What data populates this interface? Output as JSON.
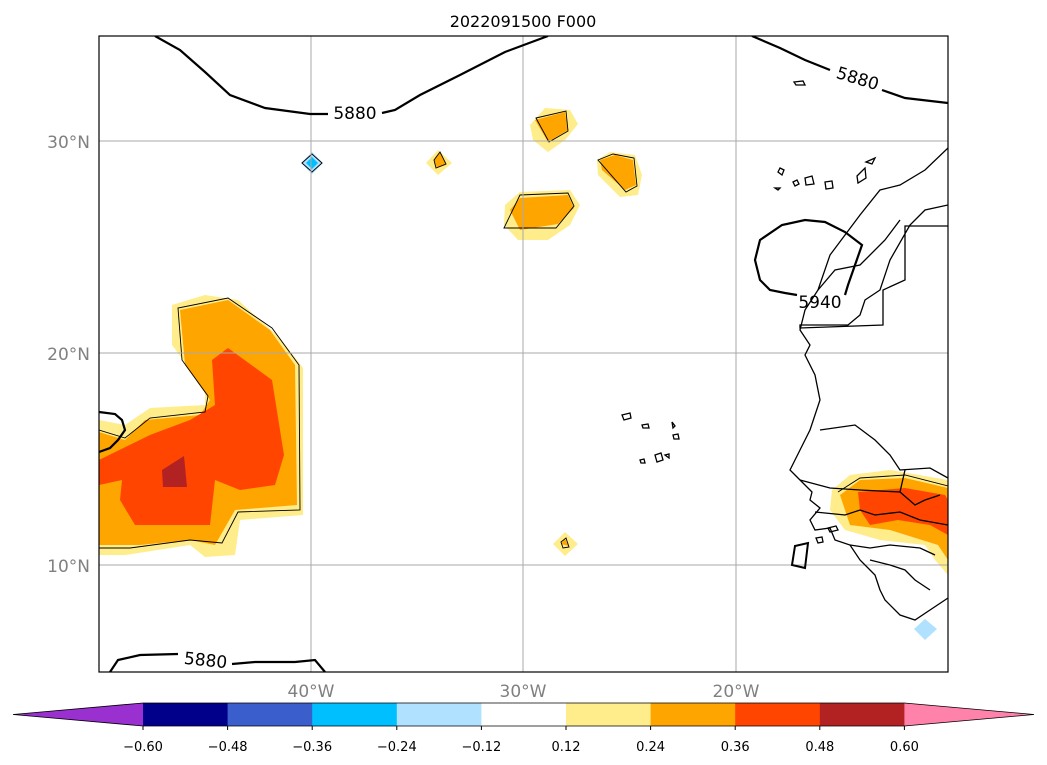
{
  "title": "2022091500 F000",
  "map": {
    "lat_labels": [
      "30°N",
      "20°N",
      "10°N"
    ],
    "lon_labels": [
      "40°W",
      "30°W",
      "20°W"
    ],
    "contour_labels": [
      "5880",
      "5880",
      "5940",
      "5880"
    ],
    "grid": true
  },
  "colorbar": {
    "orientation": "horizontal",
    "extend": "both",
    "colors": [
      "#9b30d0",
      "#00008b",
      "#3a5fcd",
      "#00bfff",
      "#b0e2ff",
      "#ffffff",
      "#ffec8b",
      "#ffa500",
      "#ff4500",
      "#b22222",
      "#ff82ab"
    ],
    "tick_labels": [
      "−0.60",
      "−0.48",
      "−0.36",
      "−0.24",
      "−0.12",
      "0.12",
      "0.24",
      "0.36",
      "0.48",
      "0.60"
    ]
  },
  "shade_colors": {
    "c1": "#ffec8b",
    "c2": "#ffa500",
    "c3": "#ff4500",
    "c4": "#b22222",
    "neg1": "#b0e2ff",
    "neg2": "#00bfff"
  }
}
